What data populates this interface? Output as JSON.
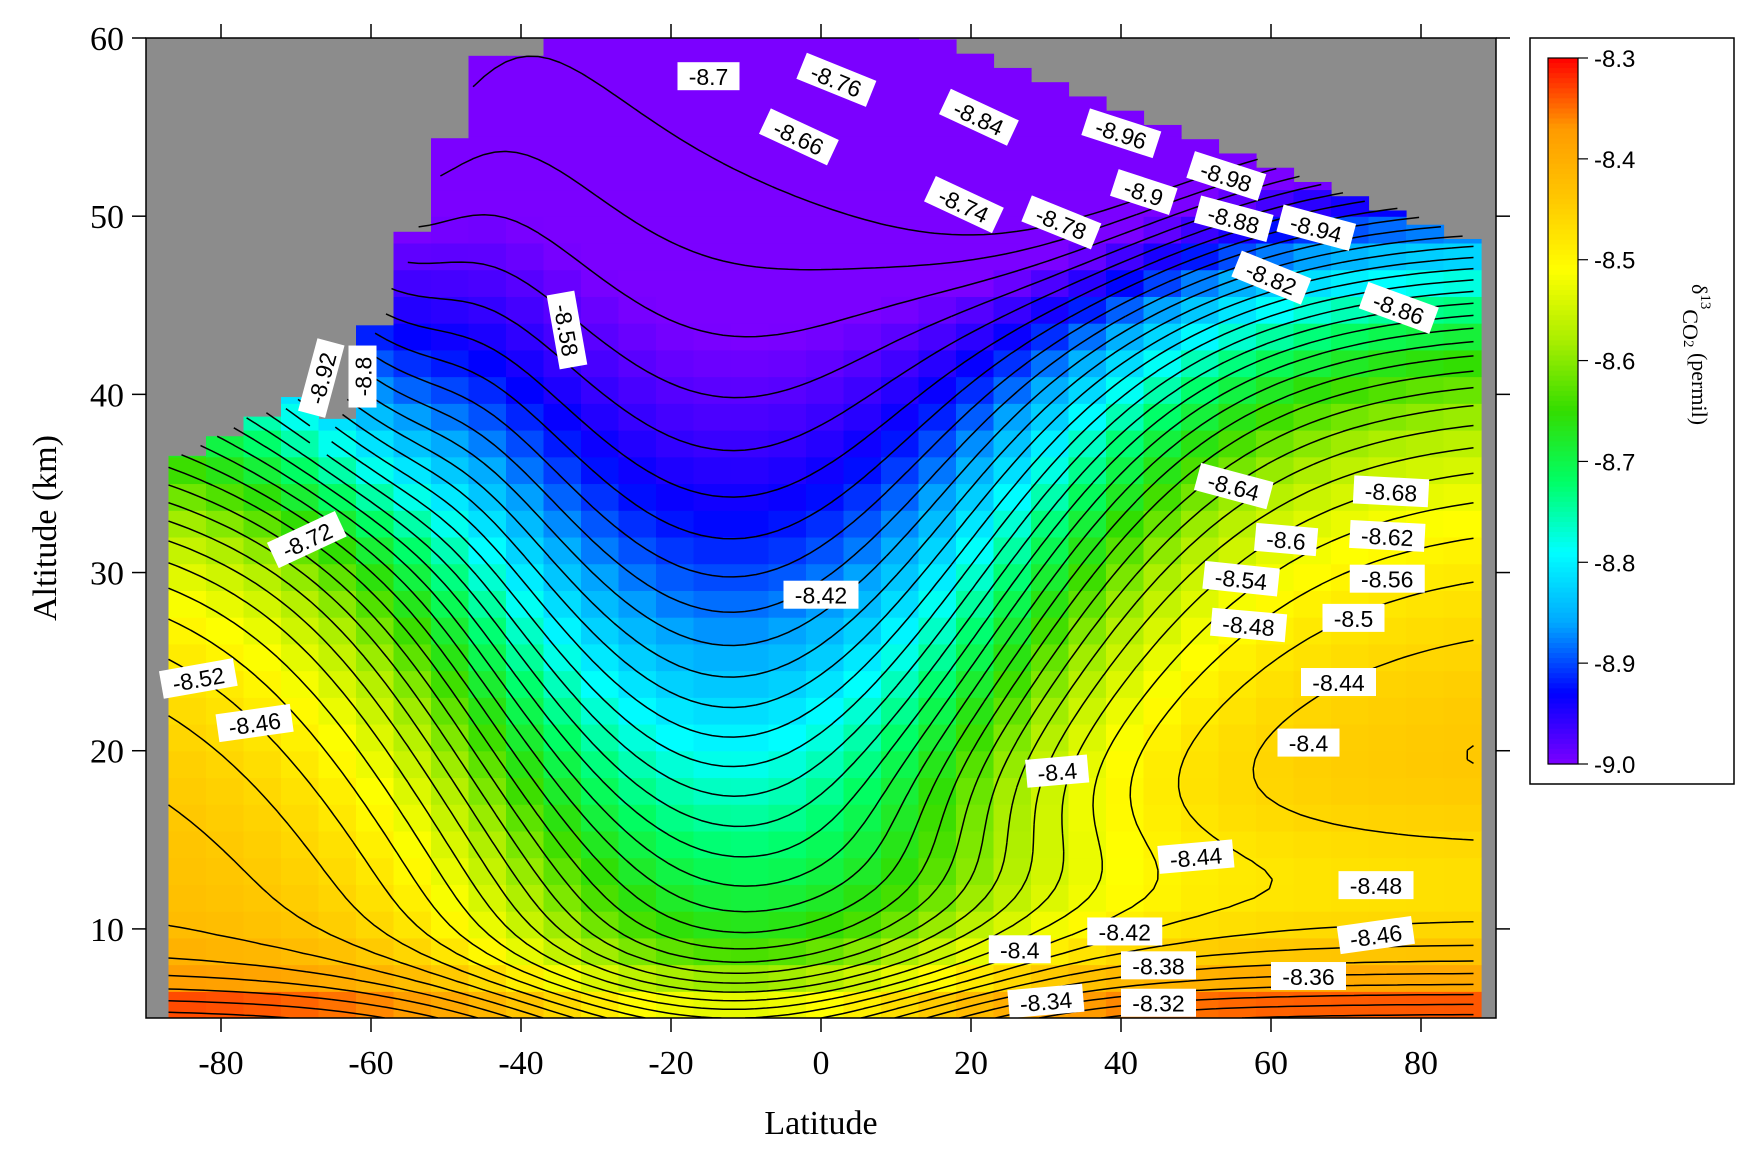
{
  "chart_data": {
    "type": "heatmap",
    "xlabel": "Latitude",
    "ylabel": "Altitude (km)",
    "xlim": [
      -90,
      90
    ],
    "ylim": [
      5,
      60
    ],
    "x_ticks": [
      -80,
      -60,
      -40,
      -20,
      0,
      20,
      40,
      60,
      80
    ],
    "x_tick_labels": [
      "-80",
      "-60",
      "-40",
      "-20",
      "0",
      "20",
      "40",
      "60",
      "80"
    ],
    "y_ticks": [
      10,
      20,
      30,
      40,
      50,
      60
    ],
    "y_tick_labels": [
      "10",
      "20",
      "30",
      "40",
      "50",
      "60"
    ],
    "colorbar": {
      "title_parts": [
        "δ",
        "13",
        "CO",
        "2",
        " (permil)"
      ],
      "range": [
        -9.0,
        -8.3
      ],
      "ticks": [
        -8.3,
        -8.4,
        -8.5,
        -8.6,
        -8.7,
        -8.8,
        -8.9,
        -9.0
      ],
      "tick_labels": [
        "-8.3",
        "-8.4",
        "-8.5",
        "-8.6",
        "-8.7",
        "-8.8",
        "-8.9",
        "-9.0"
      ],
      "colors": [
        "#7b00ff",
        "#0000ff",
        "#00a8ff",
        "#00ffff",
        "#00ff66",
        "#33dd00",
        "#aaee00",
        "#ffff00",
        "#ffc800",
        "#ff9a00",
        "#ff0000"
      ]
    },
    "no_data_color": "#8c8c8c",
    "contour_interval": 0.02,
    "contour_labels": [
      {
        "text": "-8.7",
        "lat": -15,
        "alt": 57.8,
        "angle": 0
      },
      {
        "text": "-8.76",
        "lat": 2,
        "alt": 57.6,
        "angle": 22
      },
      {
        "text": "-8.84",
        "lat": 21,
        "alt": 55.5,
        "angle": 25
      },
      {
        "text": "-8.66",
        "lat": -3,
        "alt": 54.4,
        "angle": 25
      },
      {
        "text": "-8.96",
        "lat": 40,
        "alt": 54.6,
        "angle": 18
      },
      {
        "text": "-8.98",
        "lat": 54,
        "alt": 52.2,
        "angle": 18
      },
      {
        "text": "-8.9",
        "lat": 43,
        "alt": 51.3,
        "angle": 18
      },
      {
        "text": "-8.74",
        "lat": 19,
        "alt": 50.6,
        "angle": 25
      },
      {
        "text": "-8.78",
        "lat": 32,
        "alt": 49.6,
        "angle": 22
      },
      {
        "text": "-8.88",
        "lat": 55,
        "alt": 49.8,
        "angle": 15
      },
      {
        "text": "-8.94",
        "lat": 66,
        "alt": 49.3,
        "angle": 15
      },
      {
        "text": "-8.82",
        "lat": 60,
        "alt": 46.5,
        "angle": 22
      },
      {
        "text": "-8.86",
        "lat": 77,
        "alt": 44.8,
        "angle": 20
      },
      {
        "text": "-8.58",
        "lat": -34,
        "alt": 43.6,
        "angle": 80
      },
      {
        "text": "-8.92",
        "lat": -66.5,
        "alt": 40.9,
        "angle": -75
      },
      {
        "text": "-8.8",
        "lat": -61,
        "alt": 41.0,
        "angle": -90
      },
      {
        "text": "-8.64",
        "lat": 55,
        "alt": 34.8,
        "angle": 15
      },
      {
        "text": "-8.68",
        "lat": 76,
        "alt": 34.5,
        "angle": 3
      },
      {
        "text": "-8.6",
        "lat": 62,
        "alt": 31.8,
        "angle": 5
      },
      {
        "text": "-8.62",
        "lat": 75.5,
        "alt": 32.0,
        "angle": 3
      },
      {
        "text": "-8.72",
        "lat": -68.5,
        "alt": 31.8,
        "angle": -25
      },
      {
        "text": "-8.54",
        "lat": 56,
        "alt": 29.6,
        "angle": 6
      },
      {
        "text": "-8.56",
        "lat": 75.5,
        "alt": 29.6,
        "angle": 0
      },
      {
        "text": "-8.42",
        "lat": 0,
        "alt": 28.7,
        "angle": 0
      },
      {
        "text": "-8.48",
        "lat": 57,
        "alt": 27.0,
        "angle": 5
      },
      {
        "text": "-8.5",
        "lat": 71,
        "alt": 27.4,
        "angle": 0
      },
      {
        "text": "-8.52",
        "lat": -83,
        "alt": 24.0,
        "angle": -10
      },
      {
        "text": "-8.44",
        "lat": 69,
        "alt": 23.8,
        "angle": 0
      },
      {
        "text": "-8.46",
        "lat": -75.5,
        "alt": 21.5,
        "angle": -8
      },
      {
        "text": "-8.4",
        "lat": 65,
        "alt": 20.4,
        "angle": 0
      },
      {
        "text": "-8.4",
        "lat": 31.5,
        "alt": 18.8,
        "angle": -5
      },
      {
        "text": "-8.44",
        "lat": 50,
        "alt": 14.0,
        "angle": -5
      },
      {
        "text": "-8.48",
        "lat": 74,
        "alt": 12.4,
        "angle": 0
      },
      {
        "text": "-8.46",
        "lat": 74,
        "alt": 9.6,
        "angle": -8
      },
      {
        "text": "-8.42",
        "lat": 40.5,
        "alt": 9.8,
        "angle": 0
      },
      {
        "text": "-8.4",
        "lat": 26.5,
        "alt": 8.8,
        "angle": 0
      },
      {
        "text": "-8.38",
        "lat": 45,
        "alt": 7.9,
        "angle": 0
      },
      {
        "text": "-8.36",
        "lat": 65,
        "alt": 7.3,
        "angle": 0
      },
      {
        "text": "-8.34",
        "lat": 30,
        "alt": 5.9,
        "angle": -5
      },
      {
        "text": "-8.32",
        "lat": 45,
        "alt": 5.8,
        "angle": 0
      }
    ]
  }
}
